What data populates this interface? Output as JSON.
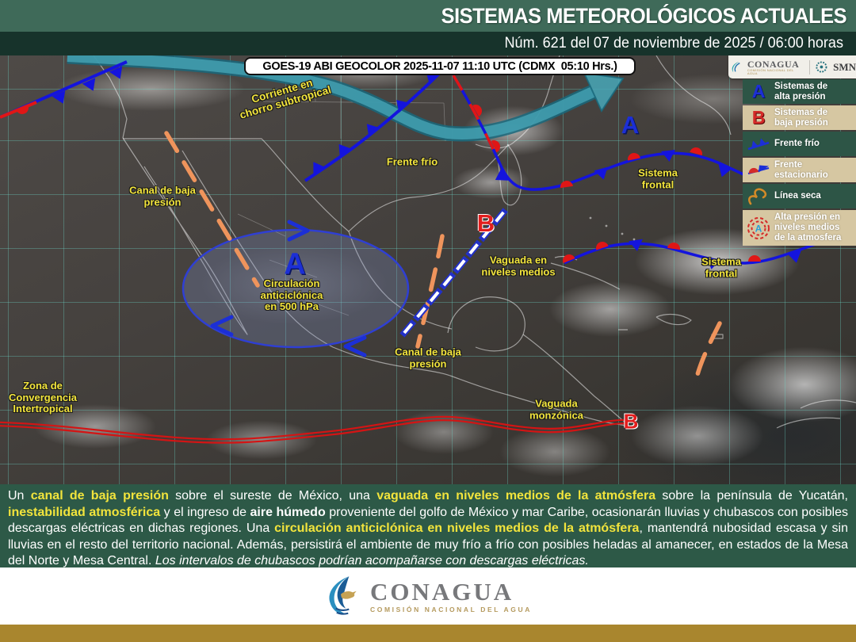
{
  "header": {
    "title": "SISTEMAS METEOROLÓGICOS ACTUALES",
    "subtitle": "Núm. 621 del 07 de noviembre de 2025 / 06:00 horas"
  },
  "map": {
    "goes_title": "GOES-19 ABI GEOCOLOR 2025-11-07 11:10 UTC (CDMX  05:10 Hrs.)",
    "logos": {
      "conagua": "CONAGUA",
      "conagua_sub": "COMISIÓN NACIONAL DEL AGUA",
      "smn": "SMN"
    },
    "legend": {
      "items": [
        {
          "icon": "high-pressure-a-icon",
          "char": "A",
          "label": "Sistemas de\nalta presión"
        },
        {
          "icon": "low-pressure-b-icon",
          "char": "B",
          "label": "Sistemas de\nbaja presión"
        },
        {
          "icon": "cold-front-icon",
          "label": "Frente frío"
        },
        {
          "icon": "stationary-front-icon",
          "label": "Frente\nestacionario"
        },
        {
          "icon": "dry-line-icon",
          "label": "Línea seca"
        },
        {
          "icon": "mid-level-high-icon",
          "char": "A",
          "label": "Alta presión en\nniveles medios\nde la atmosfera"
        }
      ]
    },
    "labels": {
      "jet": "Corriente en\nchorro subtropical",
      "canal1": "Canal de baja\npresión",
      "frente_frio": "Frente frío",
      "sistema_frontal_1": "Sistema\nfrontal",
      "sistema_frontal_2": "Sistema\nfrontal",
      "circulacion": "Circulación\nanticiclónica\nen 500 hPa",
      "vaguada_medios": "Vaguada en\nniveles medios",
      "canal2": "Canal de baja\npresión",
      "zci": "Zona de\nConvergencia\nIntertropical",
      "vaguada_monzonica": "Vaguada\nmonzónica"
    },
    "markers": {
      "a1": "A",
      "a2": "A",
      "b1": "B",
      "b2": "B"
    }
  },
  "paragraph": {
    "segments": [
      {
        "style": "n",
        "text": "Un "
      },
      {
        "style": "yb",
        "text": "canal de baja presión"
      },
      {
        "style": "n",
        "text": " sobre el sureste de México, una "
      },
      {
        "style": "yb",
        "text": "vaguada en niveles medios de la atmósfera"
      },
      {
        "style": "n",
        "text": " sobre la península de Yucatán, "
      },
      {
        "style": "yb",
        "text": "inestabilidad atmosférica"
      },
      {
        "style": "n",
        "text": " y el ingreso de "
      },
      {
        "style": "wb",
        "text": "aire húmedo"
      },
      {
        "style": "n",
        "text": " proveniente del golfo de México y mar Caribe, ocasionarán lluvias y chubascos con posibles descargas eléctricas en dichas regiones. Una "
      },
      {
        "style": "yb",
        "text": "circulación anticiclónica en niveles medios de la atmósfera"
      },
      {
        "style": "n",
        "text": ", mantendrá nubosidad escasa y sin lluvias en el resto del territorio nacional. Además, persistirá el ambiente de muy frío a frío con posibles heladas al amanecer, en estados de la Mesa del Norte y Mesa Central. "
      },
      {
        "style": "it",
        "text": "Los intervalos de chubascos podrían acompañarse con descargas eléctricas."
      }
    ]
  },
  "footer": {
    "conagua": "CONAGUA",
    "subtitle": "COMISIÓN NACIONAL DEL AGUA"
  },
  "colors": {
    "header_green": "#3f6a59",
    "header_dark": "#17332b",
    "panel_green": "#2d5947",
    "legend_green": "#2d5546",
    "legend_tan": "#d6c7a2",
    "label_yellow": "#f2e43c",
    "front_blue": "#1414dd",
    "front_red": "#e01616",
    "jet_teal": "#3a96a8",
    "trough_orange": "#ef945c",
    "gold_bar": "#a9862e"
  }
}
